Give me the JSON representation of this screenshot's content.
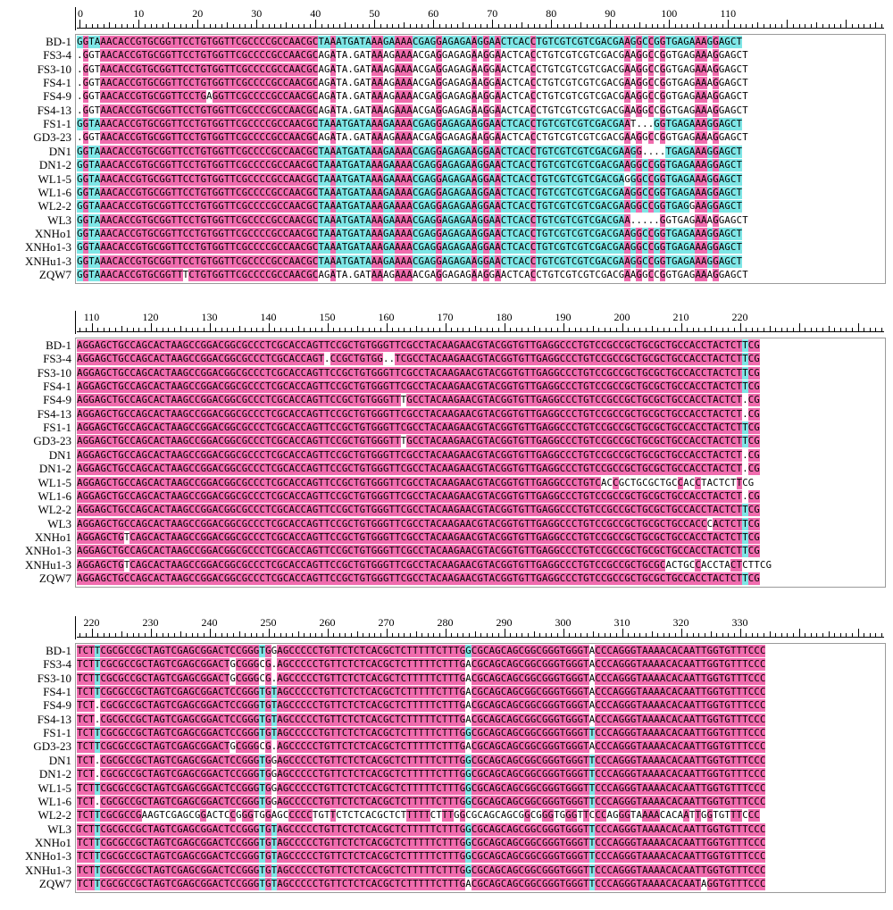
{
  "colors": {
    "identical": "#f06cae",
    "variable": "#7ee6e6",
    "mismatch": "#ffffff"
  },
  "blocks": [
    {
      "ruler_labels": [
        "0",
        "10",
        "20",
        "30",
        "40",
        "50",
        "60",
        "70",
        "80",
        "90",
        "100",
        "110"
      ],
      "ruler_start": 0,
      "sequences": [
        {
          "name": "BD-1",
          "seq": "GGTAAACACCGTGCGGTTCCTGTGGTTCGCCCCGCCAACGCTAAATGATAAAGAAAACGAGGAGAGAAGGAACTCACCTGTCGTCGTCGACGAAGGCCGGTGAGAAAGGAGCT"
        },
        {
          "name": "FS3-4",
          "seq": ".GGTAACACCGTGCGGTTCCTGTGGTTCGCCCCGCCAACGCAGATA.GATAAAGAAAACGAGGAGAGAAGGAACTCACCTGTCGTCGTCGACGAAGGCCGGTGAGAAAGGAGCT"
        },
        {
          "name": "FS3-10",
          "seq": ".GGTAACACCGTGCGGTTCCTGTGGTTCGCCCCGCCAACGCAGATA.GATAAAGAAAACGAGGAGAGAAGGAACTCACCTGTCGTCGTCGACGAAGGCCGGTGAGAAAGGAGCT"
        },
        {
          "name": "FS4-1",
          "seq": ".GGTAACACCGTGCGGTTCCTGTGGTTCGCCCCGCCAACGCAGATA.GATAAAGAAAACGAGGAGAGAAGGAACTCACCTGTCGTCGTCGACGAAGGCCGGTGAGAAAGGAGCT"
        },
        {
          "name": "FS4-9",
          "seq": ".GGTAACACCGTGCGGTTCCTGAGGTTCGCCCCGCCAACGCAGATA.GATAAAGAAAACGAGGAGAGAAGGAACTCACCTGTCGTCGTCGACGAAGGCCGGTGAGAAAGGAGCT"
        },
        {
          "name": "FS4-13",
          "seq": ".GGTAACACCGTGCGGTTCCTGTGGTTCGCCCCGCCAACGCAGATA.GATAAAGAAAACGAGGAGAGAAGGAACTCACCTGTCGTCGTCGACGAAGGCCGGTGAGAAAGGAGCT"
        },
        {
          "name": "FS1-1",
          "seq": "GGTAAACACCGTGCGGTTCCTGTGGTTCGCCCCGCCAACGCTAAATGATAAAGAAAACGAGGAGAGAAGGAACTCACCTGTCGTCGTCGACGAAT...GGTGAGAAAGGAGCT"
        },
        {
          "name": "GD3-23",
          "seq": ".GGTAACACCGTGCGGTTCCTGTGGTTCGCCCCGCCAACGCAGATA.GATAAAGAAAACGAGGAGAGAAGGAACTCACCTGTCGTCGTCGACGAAGGCCGGTGAGAAAGGAGCT"
        },
        {
          "name": "DN1",
          "seq": "GGTAAACACCGTGCGGTTCCTGTGGTTCGCCCCGCCAACGCTAAATGATAAAGAAAACGAGGAGAGAAGGAACTCACCTGTCGTCGTCGACGAAGG....TGAGAAAGGAGCT"
        },
        {
          "name": "DN1-2",
          "seq": "GGTAAACACCGTGCGGTTCCTGTGGTTCGCCCCGCCAACGCTAAATGATAAAGAAAACGAGGAGAGAAGGAACTCACCTGTCGTCGTCGACGAAGGCCGGTGAGAAAGGAGCT"
        },
        {
          "name": "WL1-5",
          "seq": "GGTAAACACCGTGCGGTTCCTGTGGTTCGCCCCGCCAACGCTAAATGATAAAGAAAACGAGGAGAGAAGGAACTCACCTGTCGTCGTCGACGAGGGCCGGTGAGAAAGGAGCT"
        },
        {
          "name": "WL1-6",
          "seq": "GGTAAACACCGTGCGGTTCCTGTGGTTCGCCCCGCCAACGCTAAATGATAAAGAAAACGAGGAGAGAAGGAACTCACCTGTCGTCGTCGACGAAGGCCGGTGAGAAAGGAGCT"
        },
        {
          "name": "WL2-2",
          "seq": "GGTAAACACCGTGCGGTTCCTGTGGTTCGCCCCGCCAACGCTAAATGATAAAGAAAACGAGGAGAGAAGGAACTCACCTGTCGTCGTCGACGAAGGCCGGTGAGGAAGGAGCT"
        },
        {
          "name": "WL3",
          "seq": "GGTAAACACCGTGCGGTTCCTGTGGTTCGCCCCGCCAACGCTAAATGATAAAGAAAACGAGGAGAGAAGGAACTCACCTGTCGTCGTCGACGAA.....GGTGAGAAAGGAGCT"
        },
        {
          "name": "XNHo1",
          "seq": "GGTAAACACCGTGCGGTTCCTGTGGTTCGCCCCGCCAACGCTAAATGATAAAGAAAACGAGGAGAGAAGGAACTCACCTGTCGTCGTCGACGAAGGCCGGTGAGAAAGGAGCT"
        },
        {
          "name": "XNHo1-3",
          "seq": "GGTAAACACCGTGCGGTTCCTGTGGTTCGCCCCGCCAACGCTAAATGATAAAGAAAACGAGGAGAGAAGGAACTCACCTGTCGTCGTCGACGAAGGCCGGTGAGAAAGGAGCT"
        },
        {
          "name": "XNHu1-3",
          "seq": "GGTAAACACCGTGCGGTTCCTGTGGTTCGCCCCGCCAACGCTAAATGATAAAGAAAACGAGGAGAGAAGGAACTCACCTGTCGTCGTCGACGAAGGCCGGTGAGAAAGGAGCT"
        },
        {
          "name": "ZQW7",
          "seq": "GGTAAACACCGTGCGGTTTCTGTGGTTCGCCCCGCCAACGCAGATA.GATAAAGAAAACGAGGAGAGAAGGAACTCACCTGTCGTCGTCGACGAAGGCCGGTGAGAAAGGAGCT"
        }
      ]
    },
    {
      "ruler_labels": [
        "110",
        "120",
        "130",
        "140",
        "150",
        "160",
        "170",
        "180",
        "190",
        "200",
        "210",
        "220"
      ],
      "ruler_start": 108,
      "sequences": [
        {
          "name": "BD-1",
          "seq": "AGGAGCTGCCAGCACTAAGCCGGACGGCGCCCTCGCACCAGTTCCGCTGTGGGTTCGCCTACAAGAACGTACGGTGTTGAGGCCCTGTCCGCCGCTGCGCTGCCACCTACTCTTCG"
        },
        {
          "name": "FS3-4",
          "seq": "AGGAGCTGCCAGCACTAAGCCGGACGGCGCCCTCGCACCAGT.CCGCTGTGG..TCGCCTACAAGAACGTACGGTGTTGAGGCCCTGTCCGCCGCTGCGCTGCCACCTACTCTTCG"
        },
        {
          "name": "FS3-10",
          "seq": "AGGAGCTGCCAGCACTAAGCCGGACGGCGCCCTCGCACCAGTTCCGCTGTGGGTTCGCCTACAAGAACGTACGGTGTTGAGGCCCTGTCCGCCGCTGCGCTGCCACCTACTCTTCG"
        },
        {
          "name": "FS4-1",
          "seq": "AGGAGCTGCCAGCACTAAGCCGGACGGCGCCCTCGCACCAGTTCCGCTGTGGGTTCGCCTACAAGAACGTACGGTGTTGAGGCCCTGTCCGCCGCTGCGCTGCCACCTACTCTTCG"
        },
        {
          "name": "FS4-9",
          "seq": "AGGAGCTGCCAGCACTAAGCCGGACGGCGCCCTCGCACCAGTTCCGCTGTGGGTTTGCCTACAAGAACGTACGGTGTTGAGGCCCTGTCCGCCGCTGCGCTGCCACCTACTCT.CG"
        },
        {
          "name": "FS4-13",
          "seq": "AGGAGCTGCCAGCACTAAGCCGGACGGCGCCCTCGCACCAGTTCCGCTGTGGGTTCGCCTACAAGAACGTACGGTGTTGAGGCCCTGTCCGCCGCTGCGCTGCCACCTACTCT.CG"
        },
        {
          "name": "FS1-1",
          "seq": "AGGAGCTGCCAGCACTAAGCCGGACGGCGCCCTCGCACCAGTTCCGCTGTGGGTTCGCCTACAAGAACGTACGGTGTTGAGGCCCTGTCCGCCGCTGCGCTGCCACCTACTCTTCG"
        },
        {
          "name": "GD3-23",
          "seq": "AGGAGCTGCCAGCACTAAGCCGGACGGCGCCCTCGCACCAGTTCCGCTGTGGGTTTGCCTACAAGAACGTACGGTGTTGAGGCCCTGTCCGCCGCTGCGCTGCCACCTACTCTTCG"
        },
        {
          "name": "DN1",
          "seq": "AGGAGCTGCCAGCACTAAGCCGGACGGCGCCCTCGCACCAGTTCCGCTGTGGGTTCGCCTACAAGAACGTACGGTGTTGAGGCCCTGTCCGCCGCTGCGCTGCCACCTACTCT.CG"
        },
        {
          "name": "DN1-2",
          "seq": "AGGAGCTGCCAGCACTAAGCCGGACGGCGCCCTCGCACCAGTTCCGCTGTGGGTTCGCCTACAAGAACGTACGGTGTTGAGGCCCTGTCCGCCGCTGCGCTGCCACCTACTCT.CG"
        },
        {
          "name": "WL1-5",
          "seq": "AGGAGCTGCCAGCACTAAGCCGGACGGCGCCCTCGCACCAGTTCCGCTGTGGGTTCGCCTACAAGAACGTACGGTGTTGAGGCCCTGTCACCGCTGCGCTGCCACCTACTCTTCG"
        },
        {
          "name": "WL1-6",
          "seq": "AGGAGCTGCCAGCACTAAGCCGGACGGCGCCCTCGCACCAGTTCCGCTGTGGGTTCGCCTACAAGAACGTACGGTGTTGAGGCCCTGTCCGCCGCTGCGCTGCCACCTACTCT.CG"
        },
        {
          "name": "WL2-2",
          "seq": "AGGAGCTGCCAGCACTAAGCCGGACGGCGCCCTCGCACCAGTTCCGCTGTGGGTTCGCCTACAAGAACGTACGGTGTTGAGGCCCTGTCCGCCGCTGCGCTGCCACCTACTCTTCG"
        },
        {
          "name": "WL3",
          "seq": "AGGAGCTGCCAGCACTAAGCCGGACGGCGCCCTCGCACCAGTTCCGCTGTGGGTTCGCCTACAAGAACGTACGGTGTTGAGGCCCTGTCCGCCGCTGCGCTGCCACCCACTCTTCG"
        },
        {
          "name": "XNHo1",
          "seq": "AGGAGCTGTCAGCACTAAGCCGGACGGCGCCCTCGCACCAGTTCCGCTGTGGGTTCGCCTACAAGAACGTACGGTGTTGAGGCCCTGTCCGCCGCTGCGCTGCCACCTACTCTTCG"
        },
        {
          "name": "XNHo1-3",
          "seq": "AGGAGCTGCCAGCACTAAGCCGGACGGCGCCCTCGCACCAGTTCCGCTGTGGGTTCGCCTACAAGAACGTACGGTGTTGAGGCCCTGTCCGCCGCTGCGCTGCCACCTACTCTTCG"
        },
        {
          "name": "XNHu1-3",
          "seq": "AGGAGCTGTCAGCACTAAGCCGGACGGCGCCCTCGCACCAGTTCCGCTGTGGGTTCGCCTACAAGAACGTACGGTGTTGAGGCCCTGTCCGCCGCTGCGCACTGCCACCTACTCTTCG"
        },
        {
          "name": "ZQW7",
          "seq": "AGGAGCTGCCAGCACTAAGCCGGACGGCGCCCTCGCACCAGTTCCGCTGTGGGTTCGCCTACAAGAACGTACGGTGTTGAGGCCCTGTCCGCCGCTGCGCTGCCACCTACTCTTCG"
        }
      ]
    },
    {
      "ruler_labels": [
        "220",
        "230",
        "240",
        "250",
        "260",
        "270",
        "280",
        "290",
        "300",
        "310",
        "320",
        "330"
      ],
      "ruler_start": 218,
      "sequences": [
        {
          "name": "BD-1",
          "seq": "TCTTCGCGCCGCTAGTCGAGCGGACTCCGGGTGGAGCCCCCTGTTCTCTCACGCTCTTTTTCTTTGGCGCAGCAGCGGCGGGTGGGTACCCAGGGTAAAACACAATTGGTGTTTCCC"
        },
        {
          "name": "FS3-4",
          "seq": "TCTTCGCGCCGCTAGTCGAGCGGACTGCGGGCG.AGCCCCCTGTTCTCTCACGCTCTTTTTCTTTGACGCAGCAGCGGCGGGTGGGTACCCAGGGTAAAACACAATTGGTGTTTCCC"
        },
        {
          "name": "FS3-10",
          "seq": "TCTTCGCGCCGCTAGTCGAGCGGACTGCGGGCG.AGCCCCCTGTTCTCTCACGCTCTTTTTCTTTGACGCAGCAGCGGCGGGTGGGTACCCAGGGTAAAACACAATTGGTGTTTCCC"
        },
        {
          "name": "FS4-1",
          "seq": "TCTTCGCGCCGCTAGTCGAGCGGACTCCGGGTGTAGCCCCCTGTTCTCTCACGCTCTTTTTCTTTGACGCAGCAGCGGCGGGTGGGTACCCAGGGTAAAACACAATTGGTGTTTCCC"
        },
        {
          "name": "FS4-9",
          "seq": "TCT.CGCGCCGCTAGTCGAGCGGACTCCGGGTGTAGCCCCCTGTTCTCTCACGCTCTTTTTCTTTGACGCAGCAGCGGCGGGTGGGTACCCAGGGTAAAACACAATTGGTGTTTCCC"
        },
        {
          "name": "FS4-13",
          "seq": "TCT.CGCGCCGCTAGTCGAGCGGACTCCGGGTGTAGCCCCCTGTTCTCTCACGCTCTTTTTCTTTGACGCAGCAGCGGCGGGTGGGTACCCAGGGTAAAACACAATTGGTGTTTCCC"
        },
        {
          "name": "FS1-1",
          "seq": "TCTTCGCGCCGCTAGTCGAGCGGACTCCGGGTGTAGCCCCCTGTTCTCTCACGCTCTTTTTCTTTGGCGCAGCAGCGGCGGGTGGGTTCCCAGGGTAAAACACAATTGGTGTTTCCC"
        },
        {
          "name": "GD3-23",
          "seq": "TCTTCGCGCCGCTAGTCGAGCGGACTGCGGGCG.AGCCCCCTGTTCTCTCACGCTCTTTTTCTTTGACGCAGCAGCGGCGGGTGGGTACCCAGGGTAAAACACAATTGGTGTTTCCC"
        },
        {
          "name": "DN1",
          "seq": "TCT.CGCGCCGCTAGTCGAGCGGACTCCGGGTGGAGCCCCCTGTTCTCTCACGCTCTTTTTCTTTGGCGCAGCAGCGGCGGGTGGGTTCCCAGGGTAAAACACAATTGGTGTTTCCC"
        },
        {
          "name": "DN1-2",
          "seq": "TCT.CGCGCCGCTAGTCGAGCGGACTCCGGGTGGAGCCCCCTGTTCTCTCACGCTCTTTTTCTTTGGCGCAGCAGCGGCGGGTGGGTTCCCAGGGTAAAACACAATTGGTGTTTCCC"
        },
        {
          "name": "WL1-5",
          "seq": "TCTTCGCGCCGCTAGTCGAGCGGACTCCGGGTGGAGCCCCCTGTTCTCTCACGCTCTTTTTCTTTGGCGCAGCAGCGGCGGGTGGGTTCCCAGGGTAAAACACAATTGGTGTTTCCC"
        },
        {
          "name": "WL1-6",
          "seq": "TCT.CGCGCCGCTAGTCGAGCGGACTCCGGGTGGAGCCCCCTGTTCTCTCACGCTCTTTTTCTTTGGCGCAGCAGCGGCGGGTGGGTTCCCAGGGTAAAACACAATTGGTGTTTCCC"
        },
        {
          "name": "WL2-2",
          "seq": "TCTTCGCGCCGAAGTCGAGCGGACTCCGGGTGGAGCCCCCTGTTCTCTCACGCTCTTTTTCTTTGGCGCAGCAGCGGCGGGTGGGTTCCCAGGGTAAAACACAATTGGTGTTTCCC"
        },
        {
          "name": "WL3",
          "seq": "TCTTCGCGCCGCTAGTCGAGCGGACTCCGGGTGTAGCCCCCTGTTCTCTCACGCTCTTTTTCTTTGGCGCAGCAGCGGCGGGTGGGTTCCCAGGGTAAAACACAATTGGTGTTTCCC"
        },
        {
          "name": "XNHo1",
          "seq": "TCTTCGCGCCGCTAGTCGAGCGGACTCCGGGTGTAGCCCCCTGTTCTCTCACGCTCTTTTTCTTTGGCGCAGCAGCGGCGGGTGGGTTCCCAGGGTAAAACACAATTGGTGTTTCCC"
        },
        {
          "name": "XNHo1-3",
          "seq": "TCTTCGCGCCGCTAGTCGAGCGGACTCCGGGTGTAGCCCCCTGTTCTCTCACGCTCTTTTTCTTTGGCGCAGCAGCGGCGGGTGGGTTCCCAGGGTAAAACACAATTGGTGTTTCCC"
        },
        {
          "name": "XNHu1-3",
          "seq": "TCTTCGCGCCGCTAGTCGAGCGGACTCCGGGTGTAGCCCCCTGTTCTCTCACGCTCTTTTTCTTTGGCGCAGCAGCGGCGGGTGGGTTCCCAGGGTAAAACACAATTGGTGTTTCCC"
        },
        {
          "name": "ZQW7",
          "seq": "TCTTCGCGCCGCTAGTCGAGCGGACTCCGGGTGTAGCCCCCTGTTCTCTCACGCTCTTTTTCTTTGACGCAGCAGCGGCGGGTGGGTTCCCAGGGTAAAACACAATAGGTGTTTCCC"
        }
      ]
    }
  ]
}
